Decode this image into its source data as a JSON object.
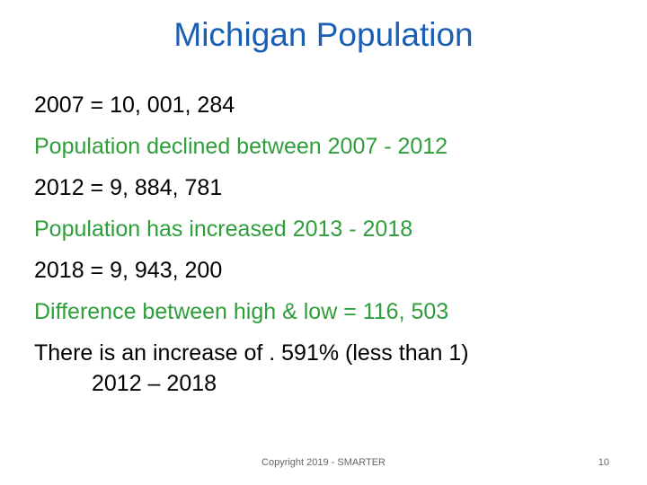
{
  "colors": {
    "title": "#1a5fb4",
    "dark_text": "#000000",
    "green_text": "#2e9e3a",
    "footer_text": "#666666",
    "background": "#ffffff"
  },
  "slide": {
    "title": "Michigan Population",
    "lines": [
      {
        "text": "2007 = 10, 001, 284",
        "color": "dark"
      },
      {
        "text": "Population declined between 2007 - 2012",
        "color": "green"
      },
      {
        "text": "2012 = 9, 884, 781",
        "color": "dark"
      },
      {
        "text": "Population has increased 2013 - 2018",
        "color": "green"
      },
      {
        "text": "2018 = 9, 943, 200",
        "color": "dark"
      },
      {
        "text": "Difference between high & low = 116, 503",
        "color": "green"
      },
      {
        "text": "There is an increase of . 591% (less than 1)",
        "color": "dark"
      },
      {
        "text": "2012 – 2018",
        "color": "dark"
      }
    ],
    "footer": "Copyright 2019 - SMARTER",
    "page_number": "10"
  }
}
